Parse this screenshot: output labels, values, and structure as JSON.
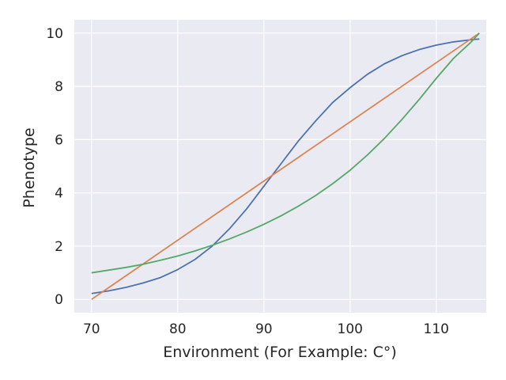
{
  "chart_data": {
    "type": "line",
    "title": "",
    "xlabel": "Environment (For Example: C°)",
    "ylabel": "Phenotype",
    "xlim": [
      68,
      115.8
    ],
    "ylim": [
      -0.5,
      10.5
    ],
    "xticks": [
      70,
      80,
      90,
      100,
      110
    ],
    "yticks": [
      0,
      2,
      4,
      6,
      8,
      10
    ],
    "grid": true,
    "legend": "none",
    "background": "#eaeaf2",
    "series": [
      {
        "color": "#4c72b0",
        "x": [
          70,
          72,
          74,
          76,
          78,
          80,
          82,
          84,
          86,
          88,
          90,
          92,
          94,
          96,
          98,
          100,
          102,
          104,
          106,
          108,
          110,
          112,
          114,
          115
        ],
        "y": [
          0.22,
          0.32,
          0.45,
          0.62,
          0.82,
          1.12,
          1.5,
          2.0,
          2.65,
          3.4,
          4.25,
          5.1,
          5.95,
          6.7,
          7.4,
          7.95,
          8.45,
          8.85,
          9.15,
          9.38,
          9.55,
          9.67,
          9.75,
          9.78
        ]
      },
      {
        "color": "#dd8452",
        "x": [
          70,
          115
        ],
        "y": [
          0.0,
          10.0
        ]
      },
      {
        "color": "#55a868",
        "x": [
          70,
          72,
          74,
          76,
          78,
          80,
          82,
          84,
          86,
          88,
          90,
          92,
          94,
          96,
          98,
          100,
          102,
          104,
          106,
          108,
          110,
          112,
          114,
          115
        ],
        "y": [
          1.0,
          1.1,
          1.2,
          1.32,
          1.47,
          1.63,
          1.82,
          2.03,
          2.27,
          2.53,
          2.82,
          3.14,
          3.5,
          3.9,
          4.35,
          4.85,
          5.42,
          6.05,
          6.75,
          7.5,
          8.3,
          9.05,
          9.65,
          10.0
        ]
      }
    ]
  }
}
